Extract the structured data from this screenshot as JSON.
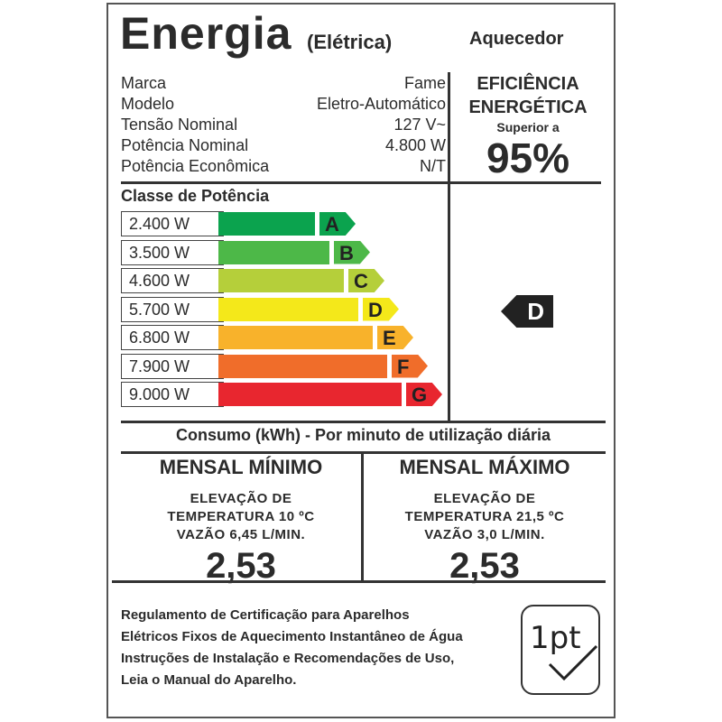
{
  "header": {
    "title": "Energia",
    "subtitle": "(Elétrica)",
    "product": "Aquecedor"
  },
  "specs": [
    {
      "label": "Marca",
      "value": "Fame"
    },
    {
      "label": "Modelo",
      "value": "Eletro-Automático"
    },
    {
      "label": "Tensão Nominal",
      "value": "127 V~"
    },
    {
      "label": "Potência Nominal",
      "value": "4.800 W"
    },
    {
      "label": "Potência Econômica",
      "value": "N/T"
    }
  ],
  "efficiency": {
    "line1": "EFICIÊNCIA",
    "line2": "ENERGÉTICA",
    "prefix": "Superior a",
    "value": "95%"
  },
  "power_class": {
    "title": "Classe de Potência",
    "rows": [
      {
        "power": "2.400 W",
        "letter": "A",
        "color": "#0ba34e"
      },
      {
        "power": "3.500 W",
        "letter": "B",
        "color": "#4db848"
      },
      {
        "power": "4.600 W",
        "letter": "C",
        "color": "#b5cf3a"
      },
      {
        "power": "5.700 W",
        "letter": "D",
        "color": "#f4e81a"
      },
      {
        "power": "6.800 W",
        "letter": "E",
        "color": "#f8b22b"
      },
      {
        "power": "7.900 W",
        "letter": "F",
        "color": "#f06d2a"
      },
      {
        "power": "9.000 W",
        "letter": "G",
        "color": "#e8262f"
      }
    ],
    "selected": "D"
  },
  "consumption": {
    "title": "Consumo (kWh) - Por minuto de utilização diária",
    "min": {
      "heading": "MENSAL MÍNIMO",
      "l1": "ELEVAÇÃO DE",
      "l2": "TEMPERATURA 10 ºC",
      "l3": "VAZÃO 6,45 L/MIN.",
      "value": "2,53"
    },
    "max": {
      "heading": "MENSAL MÁXIMO",
      "l1": "ELEVAÇÃO DE",
      "l2": "TEMPERATURA 21,5 ºC",
      "l3": "VAZÃO 3,0 L/MIN.",
      "value": "2,53"
    }
  },
  "footer": {
    "lines": [
      "Regulamento de Certificação para Aparelhos",
      "Elétricos Fixos de Aquecimento Instantâneo de Água",
      "Instruções de Instalação e Recomendações de Uso,",
      "Leia o Manual do Aparelho."
    ],
    "logo": "ipt"
  }
}
